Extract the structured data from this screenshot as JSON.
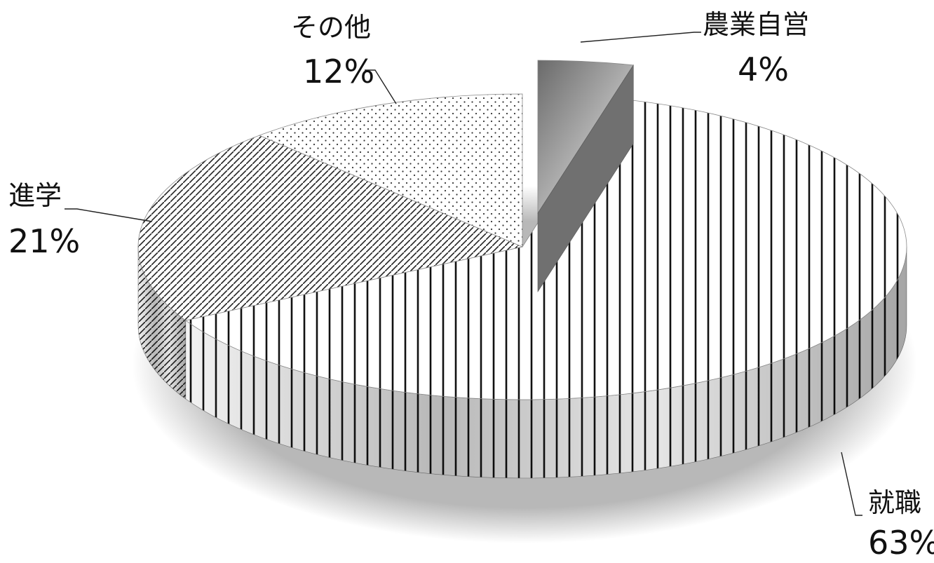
{
  "chart_data": {
    "type": "pie",
    "title": "",
    "categories": [
      "就職",
      "進学",
      "その他",
      "農業自営"
    ],
    "values": [
      63,
      21,
      12,
      4
    ],
    "value_labels": [
      "63%",
      "21%",
      "12%",
      "4%"
    ],
    "exploded": [
      "農業自営"
    ],
    "legend": "none"
  }
}
